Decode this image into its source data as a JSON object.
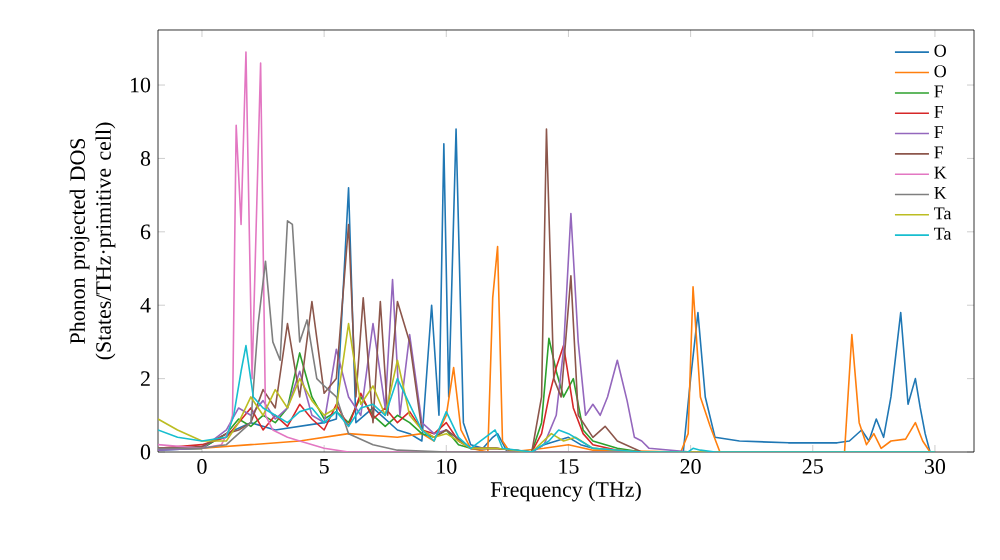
{
  "chart_data": {
    "type": "line",
    "xlabel": "Frequency (THz)",
    "ylabel": "Phonon projected DOS (States/THz·primitive cell)",
    "xlim": [
      -1.8,
      31.6
    ],
    "ylim": [
      0,
      11.5
    ],
    "xticks": [
      0,
      5,
      10,
      15,
      20,
      25,
      30
    ],
    "yticks": [
      0,
      2,
      4,
      6,
      8,
      10
    ],
    "legend": "top right",
    "grid": false,
    "marker": "none",
    "line_style": "solid",
    "series": [
      {
        "name": "O",
        "color": "#1f77b4",
        "x": [
          -1.8,
          0,
          1,
          2,
          3,
          4,
          5,
          5.5,
          6,
          6.3,
          7,
          8,
          8.5,
          9,
          9.4,
          9.7,
          9.9,
          10.1,
          10.4,
          10.7,
          11,
          11.5,
          11.9,
          12.1,
          12.5,
          13.5,
          14,
          14.5,
          15,
          15.5,
          16,
          17,
          18,
          19.7,
          20,
          20.3,
          20.6,
          21,
          22,
          24,
          26,
          26.5,
          27,
          27.3,
          27.6,
          27.9,
          28.2,
          28.6,
          28.9,
          29.2,
          29.4,
          29.6,
          29.8,
          30
        ],
        "values": [
          0.05,
          0.1,
          0.5,
          0.8,
          0.6,
          0.7,
          0.8,
          0.9,
          7.2,
          0.8,
          1.2,
          0.6,
          0.5,
          0.3,
          4.0,
          1.0,
          8.4,
          1.5,
          8.8,
          0.8,
          0.2,
          0.1,
          0.4,
          0.5,
          0,
          0,
          0.2,
          0.3,
          0.4,
          0.2,
          0.1,
          0.05,
          0,
          0,
          2.0,
          3.8,
          1.5,
          0.4,
          0.3,
          0.25,
          0.25,
          0.3,
          0.6,
          0.3,
          0.9,
          0.4,
          1.5,
          3.8,
          1.3,
          2.0,
          1.2,
          0.5,
          0,
          0
        ]
      },
      {
        "name": "O",
        "color": "#ff7f0e",
        "x": [
          -1.8,
          0,
          2,
          4,
          6,
          8,
          9,
          9.5,
          10,
          10.3,
          10.6,
          11,
          11.7,
          11.9,
          12.1,
          12.3,
          12.6,
          14,
          15,
          16,
          19.6,
          19.9,
          20.1,
          20.4,
          20.8,
          21.2,
          26.3,
          26.6,
          26.9,
          27.2,
          27.5,
          27.8,
          28.2,
          28.8,
          29.2,
          29.5,
          29.8,
          30
        ],
        "values": [
          0.1,
          0.1,
          0.2,
          0.3,
          0.5,
          0.4,
          0.5,
          0.3,
          1.0,
          2.3,
          0.6,
          0.1,
          0,
          4.2,
          5.6,
          0.3,
          0,
          0.1,
          0.2,
          0.05,
          0,
          0.5,
          4.5,
          1.5,
          0.7,
          0,
          0,
          3.2,
          0.8,
          0.2,
          0.5,
          0.1,
          0.3,
          0.35,
          0.8,
          0.3,
          0,
          0
        ]
      },
      {
        "name": "F",
        "color": "#2ca02c",
        "x": [
          -1.8,
          0,
          1,
          1.5,
          2,
          2.5,
          3,
          3.5,
          4,
          4.5,
          5,
          5.5,
          6,
          6.5,
          7,
          7.5,
          8,
          8.5,
          9,
          9.5,
          10,
          10.5,
          11,
          12,
          13.5,
          13.9,
          14.2,
          14.5,
          14.8,
          15.2,
          15.6,
          16,
          17,
          18,
          20,
          30
        ],
        "values": [
          0.1,
          0.1,
          0.5,
          0.9,
          0.7,
          1.0,
          0.8,
          1.2,
          2.7,
          1.5,
          0.9,
          1.1,
          0.8,
          1.5,
          1.0,
          0.7,
          1.0,
          0.8,
          0.5,
          0.4,
          0.6,
          0.2,
          0.1,
          0.1,
          0,
          0.8,
          3.1,
          2.2,
          1.5,
          2.0,
          0.6,
          0.3,
          0.1,
          0,
          0,
          0
        ]
      },
      {
        "name": "F",
        "color": "#d62728",
        "x": [
          -1.8,
          0,
          1,
          1.5,
          2,
          2.5,
          3,
          3.5,
          4,
          4.5,
          5,
          5.5,
          6,
          6.5,
          7,
          7.5,
          8,
          8.5,
          9,
          9.5,
          10,
          10.5,
          11,
          12,
          13.5,
          13.9,
          14.2,
          14.5,
          14.8,
          15.2,
          15.6,
          16,
          17,
          18
        ],
        "values": [
          0.1,
          0.2,
          0.4,
          0.8,
          1.2,
          0.6,
          1.0,
          0.7,
          1.3,
          0.9,
          0.6,
          1.3,
          0.7,
          1.6,
          0.9,
          1.2,
          0.8,
          1.1,
          0.6,
          0.5,
          0.8,
          0.3,
          0.1,
          0.1,
          0,
          0.5,
          1.5,
          2.3,
          2.9,
          1.2,
          0.5,
          0.2,
          0.05,
          0
        ]
      },
      {
        "name": "F",
        "color": "#9467bd",
        "x": [
          -1.8,
          0,
          1,
          1.5,
          2,
          2.5,
          3,
          3.5,
          4,
          4.5,
          5,
          5.5,
          6,
          6.5,
          7,
          7.5,
          7.8,
          8.1,
          8.5,
          9,
          9.5,
          10,
          11,
          12,
          13.5,
          14,
          14.5,
          14.8,
          15.1,
          15.4,
          15.7,
          16,
          16.3,
          16.6,
          17,
          17.4,
          17.7,
          18,
          18.3,
          20,
          30
        ],
        "values": [
          0.05,
          0.1,
          0.6,
          1.2,
          1.0,
          1.4,
          0.9,
          1.2,
          2.2,
          1.0,
          0.8,
          2.8,
          1.5,
          1.0,
          3.5,
          1.2,
          4.7,
          1.0,
          3.2,
          0.8,
          0.5,
          0.6,
          0.1,
          0.1,
          0,
          0.2,
          1.0,
          2.8,
          6.5,
          3.0,
          1.0,
          1.3,
          1.0,
          1.5,
          2.5,
          1.4,
          0.4,
          0.3,
          0.1,
          0,
          0
        ]
      },
      {
        "name": "F",
        "color": "#8c564b",
        "x": [
          -1.8,
          0,
          1,
          1.5,
          2,
          2.5,
          3,
          3.5,
          4,
          4.5,
          5,
          5.5,
          6,
          6.3,
          6.6,
          7,
          7.3,
          7.6,
          8,
          8.5,
          9,
          9.5,
          10,
          11,
          12,
          13.5,
          13.9,
          14.1,
          14.4,
          14.7,
          15.1,
          15.4,
          16,
          16.5,
          17,
          18,
          20,
          30
        ],
        "values": [
          0.1,
          0.15,
          0.5,
          0.6,
          0.8,
          1.7,
          1.2,
          3.5,
          1.5,
          4.1,
          1.6,
          2.0,
          6.2,
          1.5,
          4.2,
          0.8,
          4.1,
          1.0,
          4.1,
          3.0,
          0.6,
          0.4,
          0.6,
          0.1,
          0.1,
          0,
          1.5,
          8.8,
          2.0,
          1.5,
          4.8,
          1.0,
          0.4,
          0.7,
          0.3,
          0,
          0,
          0
        ]
      },
      {
        "name": "K",
        "color": "#e377c2",
        "x": [
          -1.8,
          0,
          0.8,
          1.1,
          1.25,
          1.4,
          1.6,
          1.8,
          2.05,
          2.4,
          2.6,
          2.9,
          3.5,
          4,
          5,
          6,
          8,
          10,
          30
        ],
        "values": [
          0.2,
          0.1,
          0.2,
          0.6,
          1.0,
          8.9,
          6.2,
          10.9,
          2.0,
          10.6,
          1.0,
          0.6,
          0.4,
          0.3,
          0.1,
          0,
          0,
          0,
          0
        ]
      },
      {
        "name": "K",
        "color": "#7f7f7f",
        "x": [
          -1.8,
          0,
          1,
          1.5,
          2,
          2.3,
          2.6,
          2.9,
          3.2,
          3.5,
          3.7,
          4.0,
          4.3,
          4.7,
          5,
          5.5,
          6,
          7,
          8,
          10,
          30
        ],
        "values": [
          0.1,
          0.1,
          0.2,
          0.5,
          0.8,
          3.5,
          5.2,
          3.0,
          2.5,
          6.3,
          6.2,
          3.0,
          3.6,
          2.0,
          1.8,
          1.5,
          0.5,
          0.2,
          0.05,
          0,
          0
        ]
      },
      {
        "name": "Ta",
        "color": "#bcbd22",
        "x": [
          -1.8,
          -1,
          0,
          1,
          1.5,
          2,
          2.5,
          3,
          3.5,
          4,
          4.5,
          5,
          5.5,
          6,
          6.5,
          7,
          7.5,
          8,
          8.5,
          9,
          9.5,
          10,
          11,
          12,
          13.5,
          14.3,
          14.8,
          15.3,
          16,
          18,
          20,
          30
        ],
        "values": [
          0.9,
          0.6,
          0.3,
          0.3,
          0.8,
          1.5,
          1.0,
          1.7,
          1.2,
          2.0,
          1.4,
          1.0,
          1.2,
          3.5,
          1.3,
          1.8,
          1.0,
          2.5,
          1.0,
          0.6,
          0.4,
          0.5,
          0.1,
          0.1,
          0,
          0.5,
          0.3,
          0.4,
          0.1,
          0,
          0,
          0
        ]
      },
      {
        "name": "Ta",
        "color": "#17becf",
        "x": [
          -1.8,
          -1,
          0,
          1,
          1.3,
          1.6,
          1.8,
          2.1,
          2.5,
          3,
          3.5,
          4,
          4.5,
          5,
          5.5,
          6,
          6.5,
          7,
          7.5,
          8,
          8.5,
          9,
          9.5,
          10,
          10.5,
          11,
          11.8,
          12,
          12.3,
          13.5,
          14.2,
          14.6,
          15,
          15.5,
          16,
          18,
          19.9,
          20.1,
          20.4,
          21,
          30
        ],
        "values": [
          0.6,
          0.4,
          0.3,
          0.4,
          1.0,
          2.2,
          2.9,
          1.5,
          1.2,
          1.0,
          0.8,
          1.1,
          1.2,
          0.8,
          1.1,
          0.7,
          1.2,
          1.3,
          1.0,
          2.0,
          1.3,
          0.6,
          0.3,
          1.1,
          0.4,
          0.1,
          0.5,
          0.6,
          0.1,
          0,
          0.3,
          0.6,
          0.5,
          0.3,
          0.1,
          0,
          0,
          0.1,
          0.05,
          0,
          0
        ]
      }
    ]
  }
}
